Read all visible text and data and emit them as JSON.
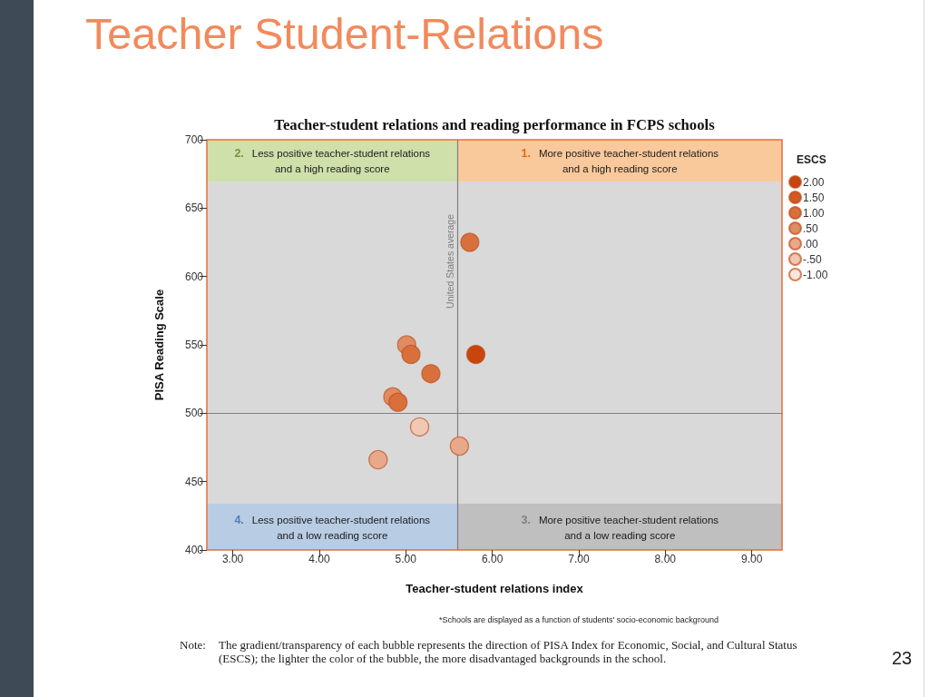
{
  "chart_data": {
    "type": "scatter",
    "title": "Teacher Student-Relations",
    "subtitle": "Teacher-student relations and reading performance in FCPS schools",
    "xlabel": "Teacher-student relations index",
    "ylabel": "PISA Reading Scale",
    "legend_title": "ESCS",
    "legend": "right",
    "marker": "circle",
    "grid": false,
    "series": [
      {
        "name": "2.00",
        "color": "#c8460e",
        "x": [
          5.81
        ],
        "values": [
          543
        ]
      },
      {
        "name": "1.50",
        "color": "#d25a22"
      },
      {
        "name": "1.00",
        "color": "#d8703c",
        "x": [
          5.74,
          5.06,
          5.29,
          4.91
        ],
        "values": [
          625,
          543,
          529,
          508
        ]
      },
      {
        "name": ".50",
        "color": "#df8c63",
        "x": [
          5.01,
          4.85
        ],
        "values": [
          550,
          512
        ]
      },
      {
        "name": ".00",
        "color": "#e8a98a",
        "x": [
          5.62,
          4.68
        ],
        "values": [
          476,
          466
        ]
      },
      {
        "name": "-.50",
        "color": "#f0c8b4",
        "x": [
          5.16
        ],
        "values": [
          490
        ]
      },
      {
        "name": "-1.00",
        "color": "#fae8df"
      }
    ],
    "xlim": [
      2.7,
      9.35
    ],
    "xticks": [
      {
        "value": 3,
        "label": "3.00"
      },
      {
        "value": 4,
        "label": "4.00"
      },
      {
        "value": 5,
        "label": "5.00"
      },
      {
        "value": 6,
        "label": "6.00"
      },
      {
        "value": 7,
        "label": "7.00"
      },
      {
        "value": 8,
        "label": "8.00"
      },
      {
        "value": 9,
        "label": "9.00"
      }
    ],
    "ylim": [
      400,
      700
    ],
    "yticks": [
      400,
      450,
      500,
      550,
      600,
      650,
      700
    ],
    "ref_lines": [
      {
        "axis": "x",
        "value": 5.6,
        "label": "United States average",
        "color": "#7f7f7f"
      },
      {
        "axis": "y",
        "value": 500,
        "color": "#7f7f7f"
      }
    ],
    "annotations": [
      "2. Less positive teacher-student relations and a high reading score",
      "1. More positive teacher-student relations and a high reading score",
      "4. Less positive teacher-student relations and a low reading score",
      "3. More positive teacher-student relations and a low reading score",
      "*Schools are displayed as a function of students' socio-economic background",
      "Note: The gradient/transparency of each bubble represents the direction of PISA Index for Economic, Social, and Cultural Status (ESCS); the lighter the color of the bubble, the more disadvantaged backgrounds in the school.",
      "23"
    ]
  }
}
